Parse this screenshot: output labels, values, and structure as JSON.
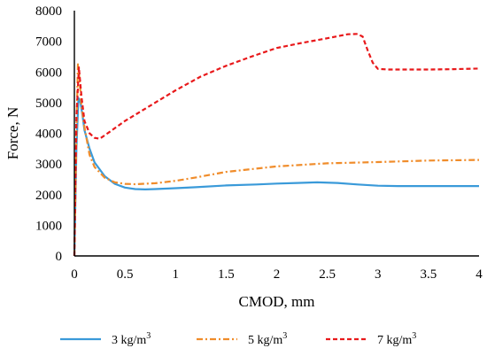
{
  "chart_data": {
    "type": "line",
    "title": "",
    "xlabel": "CMOD, mm",
    "ylabel": "Force, N",
    "xlim": [
      0,
      4
    ],
    "ylim": [
      0,
      8000
    ],
    "xticks": [
      "0",
      "0.5",
      "1",
      "1.5",
      "2",
      "2.5",
      "3",
      "3.5",
      "4"
    ],
    "yticks": [
      "0",
      "1000",
      "2000",
      "3000",
      "4000",
      "5000",
      "6000",
      "7000",
      "8000"
    ],
    "grid": false,
    "legend_position": "bottom",
    "series": [
      {
        "name": "3 kg/m",
        "name_sup": "3",
        "color": "#3a9ad9",
        "style": "solid",
        "x": [
          0,
          0.02,
          0.04,
          0.06,
          0.08,
          0.1,
          0.15,
          0.2,
          0.3,
          0.4,
          0.5,
          0.6,
          0.7,
          0.8,
          1.0,
          1.2,
          1.5,
          1.8,
          2.0,
          2.2,
          2.4,
          2.6,
          2.8,
          3.0,
          3.2,
          3.5,
          3.8,
          4.0
        ],
        "y": [
          0,
          3500,
          5150,
          5000,
          4600,
          4100,
          3500,
          3050,
          2600,
          2350,
          2230,
          2180,
          2170,
          2180,
          2210,
          2240,
          2300,
          2330,
          2360,
          2380,
          2400,
          2380,
          2330,
          2290,
          2280,
          2280,
          2280,
          2280
        ]
      },
      {
        "name": "5 kg/m",
        "name_sup": "3",
        "color": "#f08c2a",
        "style": "dashdot",
        "x": [
          0,
          0.02,
          0.035,
          0.05,
          0.07,
          0.1,
          0.15,
          0.2,
          0.3,
          0.4,
          0.5,
          0.6,
          0.8,
          1.0,
          1.2,
          1.5,
          2.0,
          2.5,
          3.0,
          3.5,
          4.0
        ],
        "y": [
          0,
          4000,
          6250,
          5800,
          4900,
          4200,
          3300,
          2900,
          2550,
          2400,
          2350,
          2340,
          2370,
          2450,
          2560,
          2740,
          2920,
          3020,
          3060,
          3110,
          3130
        ]
      },
      {
        "name": "7 kg/m",
        "name_sup": "3",
        "color": "#e8191b",
        "style": "dashed",
        "x": [
          0,
          0.02,
          0.045,
          0.07,
          0.1,
          0.15,
          0.2,
          0.25,
          0.35,
          0.5,
          0.75,
          1.0,
          1.25,
          1.5,
          1.75,
          2.0,
          2.25,
          2.5,
          2.7,
          2.8,
          2.85,
          2.9,
          2.95,
          3.0,
          3.1,
          3.25,
          3.5,
          3.75,
          4.0
        ],
        "y": [
          0,
          4500,
          6150,
          5200,
          4400,
          4000,
          3850,
          3820,
          4050,
          4400,
          4900,
          5400,
          5850,
          6200,
          6500,
          6780,
          6950,
          7100,
          7230,
          7240,
          7150,
          6700,
          6300,
          6100,
          6080,
          6080,
          6080,
          6090,
          6110
        ]
      }
    ]
  }
}
